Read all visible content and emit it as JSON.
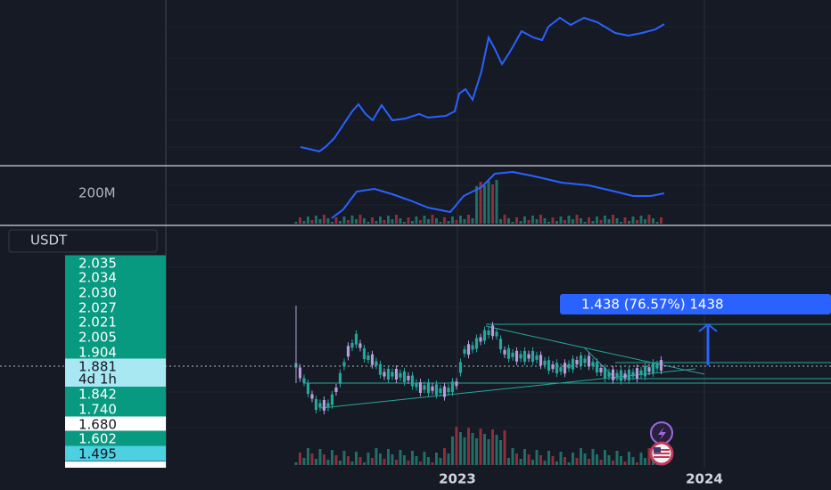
{
  "volume_panel": {
    "scale_label": "200M"
  },
  "currency": "USDT",
  "price_labels": [
    "2.035",
    "2.034",
    "2.030",
    "2.027",
    "2.021",
    "2.005",
    "1.904",
    "1.881",
    "1.842",
    "1.740",
    "1.680",
    "1.602",
    "1.495"
  ],
  "countdown": "4d 1h",
  "measure": "1.438 (76.57%) 1438",
  "x_axis": [
    "2023",
    "2024"
  ]
}
